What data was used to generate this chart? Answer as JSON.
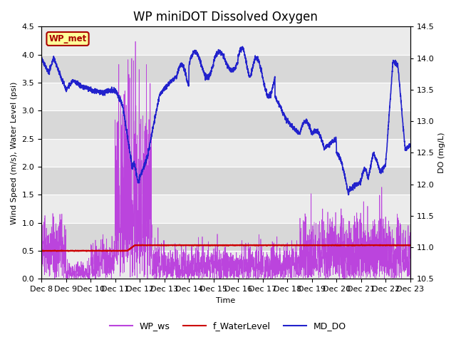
{
  "title": "WP miniDOT Dissolved Oxygen",
  "xlabel": "Time",
  "ylabel_left": "Wind Speed (m/s), Water Level (psi)",
  "ylabel_right": "DO (mg/L)",
  "ylim_left": [
    0.0,
    4.5
  ],
  "ylim_right": [
    10.5,
    14.5
  ],
  "yticks_left": [
    0.0,
    0.5,
    1.0,
    1.5,
    2.0,
    2.5,
    3.0,
    3.5,
    4.0,
    4.5
  ],
  "yticks_right": [
    10.5,
    11.0,
    11.5,
    12.0,
    12.5,
    13.0,
    13.5,
    14.0,
    14.5
  ],
  "x_tick_labels": [
    "Dec 8",
    "Dec 9",
    "Dec 10",
    "Dec 11",
    "Dec 12",
    "Dec 13",
    "Dec 14",
    "Dec 15",
    "Dec 16",
    "Dec 17",
    "Dec 18",
    "Dec 19",
    "Dec 20",
    "Dec 21",
    "Dec 22",
    "Dec 23"
  ],
  "wp_ws_color": "#BB44DD",
  "f_waterlevel_color": "#CC0000",
  "md_do_color": "#2222CC",
  "bg_light": "#EBEBEB",
  "bg_dark": "#D8D8D8",
  "legend_label_ws": "WP_ws",
  "legend_label_wl": "f_WaterLevel",
  "legend_label_do": "MD_DO",
  "annotation_text": "WP_met",
  "annotation_bg": "#FFFF99",
  "annotation_border": "#AA0000",
  "annotation_text_color": "#AA0000",
  "title_fontsize": 12,
  "axis_fontsize": 8,
  "tick_fontsize": 8
}
